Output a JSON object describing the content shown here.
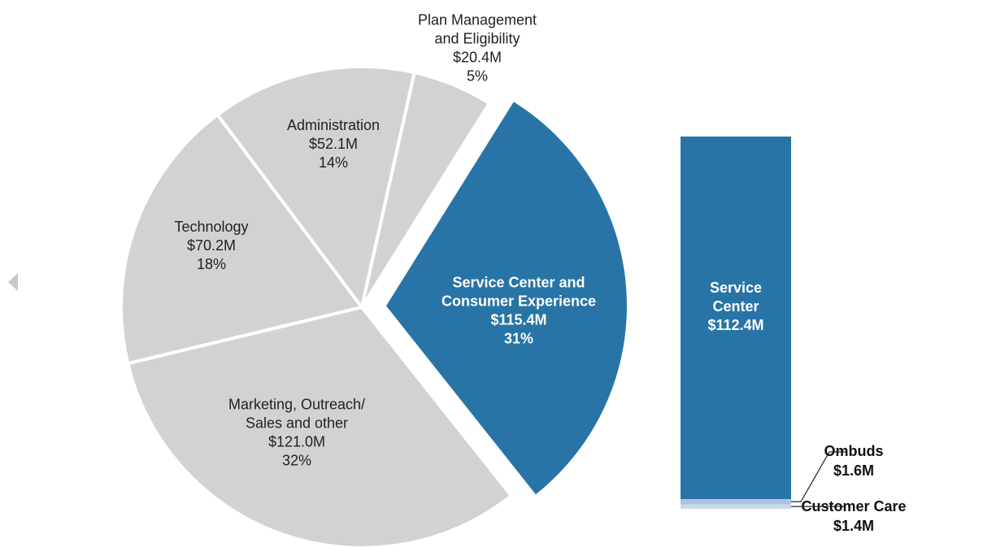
{
  "chart_data": [
    {
      "type": "pie",
      "labels": [
        [
          "Service Center and",
          "Consumer Experience"
        ],
        [
          "Marketing, Outreach/",
          "Sales and other"
        ],
        [
          "Technology"
        ],
        [
          "Administration"
        ],
        [
          "Plan Management",
          "and Eligibility"
        ]
      ],
      "values": [
        115.4,
        121.0,
        70.2,
        52.1,
        20.4
      ],
      "value_labels": [
        "$115.4M",
        "$121.0M",
        "$70.2M",
        "$52.1M",
        "$20.4M"
      ],
      "percentages": [
        31,
        32,
        18,
        14,
        5
      ],
      "percentage_labels": [
        "31%",
        "32%",
        "18%",
        "14%",
        "5%"
      ],
      "colors": [
        "#2874a6",
        "#d1d2d4",
        "#d1d2d4",
        "#d1d2d4",
        "#d1d2d4"
      ],
      "exploded": [
        true,
        false,
        false,
        false,
        false
      ]
    },
    {
      "type": "stacked_bar",
      "series": [
        {
          "name": [
            "Service",
            "Center"
          ],
          "color": "#2874a6",
          "values": [
            112.4
          ],
          "value_labels": [
            "$112.4M"
          ]
        },
        {
          "name": [
            "Ombuds"
          ],
          "color": "#a9c4e0",
          "values": [
            1.6
          ],
          "value_labels": [
            "$1.6M"
          ]
        },
        {
          "name": [
            "Customer Care"
          ],
          "color": "#c9d8ea",
          "values": [
            1.4
          ],
          "value_labels": [
            "$1.4M"
          ]
        }
      ]
    }
  ]
}
